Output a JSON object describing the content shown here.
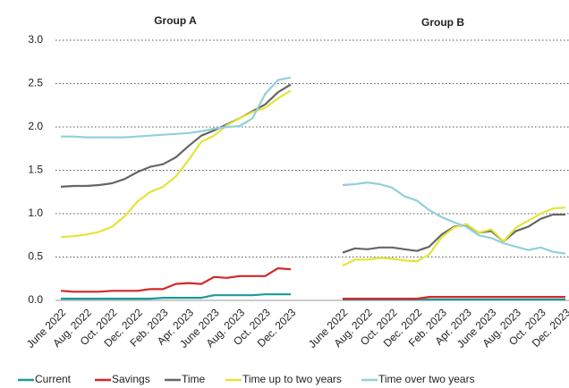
{
  "chart_data": [
    {
      "type": "line",
      "title": "Group A",
      "categories": [
        "June 2022",
        null,
        "Aug. 2022",
        null,
        "Oct. 2022",
        null,
        "Dec. 2022",
        null,
        "Feb. 2023",
        null,
        "Apr. 2023",
        null,
        "June 2023",
        null,
        "Aug. 2023",
        null,
        "Oct. 2023",
        null,
        "Dec. 2023"
      ],
      "ylim": [
        0,
        3
      ],
      "yticks": [
        {
          "value": 0,
          "label": "0.0"
        },
        {
          "value": 0.5,
          "label": "0.5"
        },
        {
          "value": 1,
          "label": "1.0"
        },
        {
          "value": 1.5,
          "label": "1.5"
        },
        {
          "value": 2,
          "label": "2.0"
        },
        {
          "value": 2.5,
          "label": "2.5"
        },
        {
          "value": 3,
          "label": "3.0"
        }
      ],
      "grid": true,
      "series": [
        {
          "name": "Current",
          "color": "#1a9a9a",
          "values": [
            0.02,
            0.02,
            0.02,
            0.02,
            0.02,
            0.02,
            0.02,
            0.02,
            0.03,
            0.03,
            0.03,
            0.03,
            0.06,
            0.06,
            0.06,
            0.06,
            0.07,
            0.07,
            0.07
          ]
        },
        {
          "name": "Savings",
          "color": "#d62728",
          "values": [
            0.11,
            0.1,
            0.1,
            0.1,
            0.11,
            0.11,
            0.11,
            0.13,
            0.13,
            0.19,
            0.2,
            0.19,
            0.27,
            0.26,
            0.28,
            0.28,
            0.28,
            0.37,
            0.36
          ]
        },
        {
          "name": "Time",
          "color": "#666666",
          "values": [
            1.31,
            1.32,
            1.32,
            1.33,
            1.35,
            1.4,
            1.48,
            1.54,
            1.57,
            1.65,
            1.78,
            1.9,
            1.96,
            2.03,
            2.1,
            2.18,
            2.26,
            2.4,
            2.49
          ]
        },
        {
          "name": "Time up to two years",
          "color": "#e4e43a",
          "values": [
            0.73,
            0.74,
            0.76,
            0.79,
            0.85,
            0.97,
            1.14,
            1.25,
            1.31,
            1.43,
            1.62,
            1.83,
            1.9,
            2.02,
            2.1,
            2.17,
            2.22,
            2.33,
            2.42
          ]
        },
        {
          "name": "Time over two years",
          "color": "#92cfdc",
          "values": [
            1.89,
            1.89,
            1.88,
            1.88,
            1.88,
            1.88,
            1.89,
            1.9,
            1.91,
            1.92,
            1.93,
            1.95,
            1.98,
            2.0,
            2.01,
            2.1,
            2.38,
            2.54,
            2.57
          ]
        }
      ]
    },
    {
      "type": "line",
      "title": "Group B",
      "categories": [
        "June 2022",
        null,
        "Aug. 2022",
        null,
        "Oct. 2022",
        null,
        "Dec. 2022",
        null,
        "Feb. 2023",
        null,
        "Apr. 2023",
        null,
        "June 2023",
        null,
        "Aug. 2023",
        null,
        "Oct. 2023",
        null,
        "Dec. 2023"
      ],
      "ylim": [
        0,
        3
      ],
      "series": [
        {
          "color": "#1a9a9a",
          "values": [
            0.01,
            0.01,
            0.01,
            0.01,
            0.01,
            0.01,
            0.01,
            0.01,
            0.01,
            0.01,
            0.01,
            0.01,
            0.01,
            0.01,
            0.01,
            0.01,
            0.01,
            0.01,
            0.01
          ]
        },
        {
          "color": "#d62728",
          "values": [
            0.02,
            0.02,
            0.02,
            0.02,
            0.02,
            0.02,
            0.02,
            0.04,
            0.04,
            0.04,
            0.04,
            0.04,
            0.04,
            0.04,
            0.04,
            0.04,
            0.04,
            0.04,
            0.04
          ]
        },
        {
          "color": "#666666",
          "values": [
            0.55,
            0.6,
            0.59,
            0.61,
            0.61,
            0.59,
            0.57,
            0.62,
            0.76,
            0.85,
            0.87,
            0.78,
            0.8,
            0.68,
            0.8,
            0.85,
            0.94,
            0.99,
            0.99
          ]
        },
        {
          "color": "#e4e43a",
          "values": [
            0.4,
            0.47,
            0.47,
            0.49,
            0.48,
            0.46,
            0.45,
            0.53,
            0.73,
            0.84,
            0.88,
            0.78,
            0.82,
            0.68,
            0.84,
            0.92,
            1.0,
            1.06,
            1.07
          ]
        },
        {
          "color": "#92cfdc",
          "values": [
            1.33,
            1.34,
            1.36,
            1.34,
            1.3,
            1.2,
            1.15,
            1.04,
            0.96,
            0.9,
            0.85,
            0.75,
            0.72,
            0.66,
            0.62,
            0.58,
            0.61,
            0.56,
            0.54
          ]
        }
      ]
    }
  ]
}
